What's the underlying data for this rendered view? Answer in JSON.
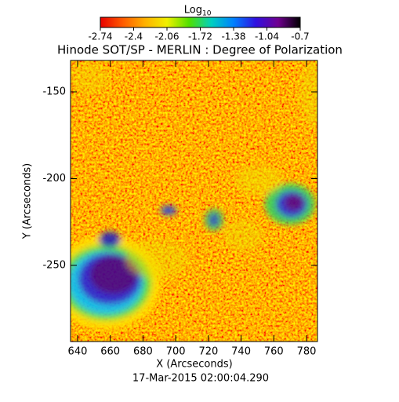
{
  "chart_data": {
    "type": "image",
    "title": "Hinode SOT/SP - MERLIN : Degree of Polarization",
    "xlabel": "X (Arcseconds)",
    "ylabel": "Y (Arcseconds)",
    "footer": "17-Mar-2015 02:00:04.290",
    "xlim": [
      635.7,
      786.7
    ],
    "ylim": [
      -293.9,
      -131.9
    ],
    "xticks": [
      640,
      660,
      680,
      700,
      720,
      740,
      760,
      780
    ],
    "yticks": [
      -250,
      -200,
      -150
    ],
    "colorbar": {
      "label": "Log",
      "label_sub": "10",
      "lim": [
        -2.74,
        -0.7
      ],
      "ticks": [
        -2.74,
        -2.4,
        -2.06,
        -1.72,
        -1.38,
        -1.04,
        -0.7
      ],
      "colormap": [
        "#e80000",
        "#ff5a00",
        "#ffb000",
        "#f0f000",
        "#50e000",
        "#00d0c0",
        "#0080ff",
        "#3010e0",
        "#700090",
        "#000000"
      ]
    }
  }
}
